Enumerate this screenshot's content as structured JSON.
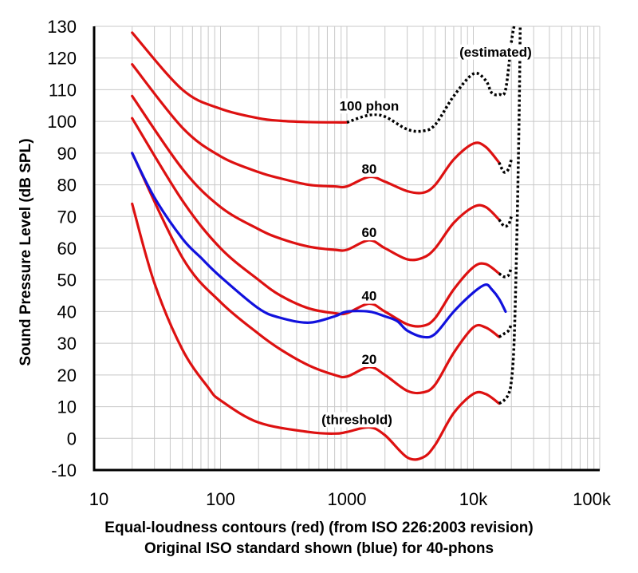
{
  "chart_data": {
    "type": "line",
    "title": "",
    "xlabel": "Equal-loudness contours (red) (from ISO 226:2003 revision)",
    "xlabel2": "Original ISO standard shown (blue) for 40-phons",
    "ylabel": "Sound Pressure Level (dB SPL)",
    "x_scale": "log",
    "xlim": [
      10,
      100000
    ],
    "ylim": [
      -10,
      130
    ],
    "grid": true,
    "x_ticks": [
      "10",
      "100",
      "1000",
      "10k",
      "100k"
    ],
    "x_tick_values": [
      10,
      100,
      1000,
      10000,
      100000
    ],
    "y_ticks": [
      "130",
      "120",
      "110",
      "100",
      "90",
      "80",
      "70",
      "60",
      "50",
      "40",
      "30",
      "20",
      "10",
      "0",
      "-10"
    ],
    "y_tick_values": [
      130,
      120,
      110,
      100,
      90,
      80,
      70,
      60,
      50,
      40,
      30,
      20,
      10,
      0,
      -10
    ],
    "colors": {
      "iso2003": "#dd1111",
      "original": "#1111dd",
      "estimated": "#000000"
    },
    "series": [
      {
        "label": "(threshold)",
        "style": "solid",
        "color": "red",
        "points": [
          [
            20,
            74
          ],
          [
            30,
            49
          ],
          [
            50,
            28
          ],
          [
            80,
            16
          ],
          [
            100,
            12
          ],
          [
            200,
            5
          ],
          [
            500,
            2
          ],
          [
            800,
            1.5
          ],
          [
            1000,
            2
          ],
          [
            1500,
            3.5
          ],
          [
            2000,
            1
          ],
          [
            3000,
            -6
          ],
          [
            4000,
            -6
          ],
          [
            5000,
            -2
          ],
          [
            7000,
            8
          ],
          [
            10000,
            14
          ],
          [
            12500,
            14
          ],
          [
            16000,
            11
          ]
        ]
      },
      {
        "label": "20",
        "style": "solid",
        "color": "red",
        "points": [
          [
            20,
            90
          ],
          [
            50,
            57
          ],
          [
            100,
            43
          ],
          [
            200,
            33
          ],
          [
            300,
            28
          ],
          [
            500,
            23
          ],
          [
            800,
            20
          ],
          [
            1000,
            19.5
          ],
          [
            1500,
            22.5
          ],
          [
            2000,
            20
          ],
          [
            3000,
            15
          ],
          [
            4000,
            14.5
          ],
          [
            5000,
            17
          ],
          [
            7000,
            27
          ],
          [
            10000,
            35
          ],
          [
            12500,
            35
          ],
          [
            16000,
            32
          ]
        ]
      },
      {
        "label": "40",
        "style": "solid",
        "color": "red",
        "points": [
          [
            20,
            101
          ],
          [
            50,
            75
          ],
          [
            100,
            60
          ],
          [
            200,
            50
          ],
          [
            300,
            45
          ],
          [
            500,
            41
          ],
          [
            800,
            39.5
          ],
          [
            1000,
            39.5
          ],
          [
            1500,
            42.5
          ],
          [
            2000,
            40
          ],
          [
            3000,
            36
          ],
          [
            4000,
            35.5
          ],
          [
            5000,
            38
          ],
          [
            7000,
            47
          ],
          [
            10000,
            54
          ],
          [
            12500,
            55
          ],
          [
            16000,
            52
          ]
        ]
      },
      {
        "label": "60",
        "style": "solid",
        "color": "red",
        "points": [
          [
            20,
            108
          ],
          [
            50,
            85
          ],
          [
            100,
            73
          ],
          [
            200,
            66
          ],
          [
            300,
            63
          ],
          [
            500,
            60.5
          ],
          [
            800,
            59.5
          ],
          [
            1000,
            59.5
          ],
          [
            1500,
            62.5
          ],
          [
            2000,
            60
          ],
          [
            3000,
            56.5
          ],
          [
            4000,
            57
          ],
          [
            5000,
            60
          ],
          [
            7000,
            68
          ],
          [
            10000,
            73
          ],
          [
            12500,
            73
          ],
          [
            16000,
            69
          ]
        ]
      },
      {
        "label": "80",
        "style": "solid",
        "color": "red",
        "points": [
          [
            20,
            118
          ],
          [
            50,
            98
          ],
          [
            100,
            89
          ],
          [
            200,
            84
          ],
          [
            300,
            82
          ],
          [
            500,
            80
          ],
          [
            800,
            79.5
          ],
          [
            1000,
            79.5
          ],
          [
            1500,
            82.5
          ],
          [
            2000,
            81
          ],
          [
            3000,
            78
          ],
          [
            4000,
            77.5
          ],
          [
            5000,
            80
          ],
          [
            7000,
            88
          ],
          [
            10000,
            93
          ],
          [
            12500,
            92
          ],
          [
            16000,
            87
          ]
        ]
      },
      {
        "label": "100 phon",
        "style": "solid",
        "color": "red",
        "points": [
          [
            20,
            128
          ],
          [
            50,
            110
          ],
          [
            100,
            104
          ],
          [
            200,
            101
          ],
          [
            300,
            100.2
          ],
          [
            500,
            99.8
          ],
          [
            800,
            99.7
          ],
          [
            1000,
            99.7
          ]
        ]
      },
      {
        "label": "100 phon (estimated)",
        "style": "dotted",
        "color": "black",
        "points": [
          [
            1000,
            99.7
          ],
          [
            1500,
            102
          ],
          [
            2000,
            101.5
          ],
          [
            3000,
            97.5
          ],
          [
            4000,
            97
          ],
          [
            5000,
            99
          ],
          [
            7000,
            108
          ],
          [
            10000,
            115
          ],
          [
            12500,
            113
          ],
          [
            14000,
            109
          ],
          [
            16000,
            108.5
          ],
          [
            18000,
            110
          ],
          [
            20000,
            125
          ],
          [
            21000,
            130
          ]
        ]
      },
      {
        "label": "80 (estimated)",
        "style": "dotted",
        "color": "black",
        "points": [
          [
            16000,
            87
          ],
          [
            17500,
            84
          ],
          [
            19000,
            85
          ],
          [
            20000,
            88
          ]
        ]
      },
      {
        "label": "60 (estimated)",
        "style": "dotted",
        "color": "black",
        "points": [
          [
            16000,
            69
          ],
          [
            17500,
            67
          ],
          [
            19000,
            67.5
          ],
          [
            20000,
            70
          ]
        ]
      },
      {
        "label": "40 (estimated)",
        "style": "dotted",
        "color": "black",
        "points": [
          [
            16000,
            52
          ],
          [
            17500,
            51
          ],
          [
            19000,
            51.5
          ],
          [
            20000,
            54
          ]
        ]
      },
      {
        "label": "20 (estimated)",
        "style": "dotted",
        "color": "black",
        "points": [
          [
            16000,
            32
          ],
          [
            17500,
            33
          ],
          [
            19000,
            34
          ],
          [
            20000,
            36
          ]
        ]
      },
      {
        "label": "threshold (estimated)",
        "style": "dotted",
        "color": "black",
        "points": [
          [
            16000,
            11
          ],
          [
            17500,
            12
          ],
          [
            19000,
            14
          ],
          [
            20000,
            18
          ],
          [
            21000,
            30
          ],
          [
            22000,
            60
          ],
          [
            23000,
            100
          ],
          [
            23500,
            130
          ]
        ]
      },
      {
        "label": "40 (original ISO)",
        "style": "solid",
        "color": "blue",
        "points": [
          [
            20,
            90
          ],
          [
            30,
            76
          ],
          [
            50,
            63
          ],
          [
            70,
            57
          ],
          [
            100,
            51
          ],
          [
            200,
            41
          ],
          [
            300,
            38
          ],
          [
            500,
            36.5
          ],
          [
            800,
            38.5
          ],
          [
            1000,
            40
          ],
          [
            1500,
            40
          ],
          [
            2000,
            38.5
          ],
          [
            2500,
            37
          ],
          [
            3000,
            34
          ],
          [
            4000,
            32
          ],
          [
            5000,
            33
          ],
          [
            7000,
            40
          ],
          [
            10000,
            46
          ],
          [
            12500,
            48.5
          ],
          [
            14000,
            47
          ],
          [
            16000,
            44
          ],
          [
            18000,
            40
          ]
        ]
      }
    ],
    "annotations": [
      {
        "text": "(estimated)",
        "x": 15000,
        "y": 122
      },
      {
        "text": "100 phon",
        "x": 1500,
        "y": 105
      },
      {
        "text": "80",
        "x": 1500,
        "y": 85
      },
      {
        "text": "60",
        "x": 1500,
        "y": 65
      },
      {
        "text": "40",
        "x": 1500,
        "y": 45
      },
      {
        "text": "20",
        "x": 1500,
        "y": 25
      },
      {
        "text": "(threshold)",
        "x": 1200,
        "y": 6
      }
    ]
  }
}
